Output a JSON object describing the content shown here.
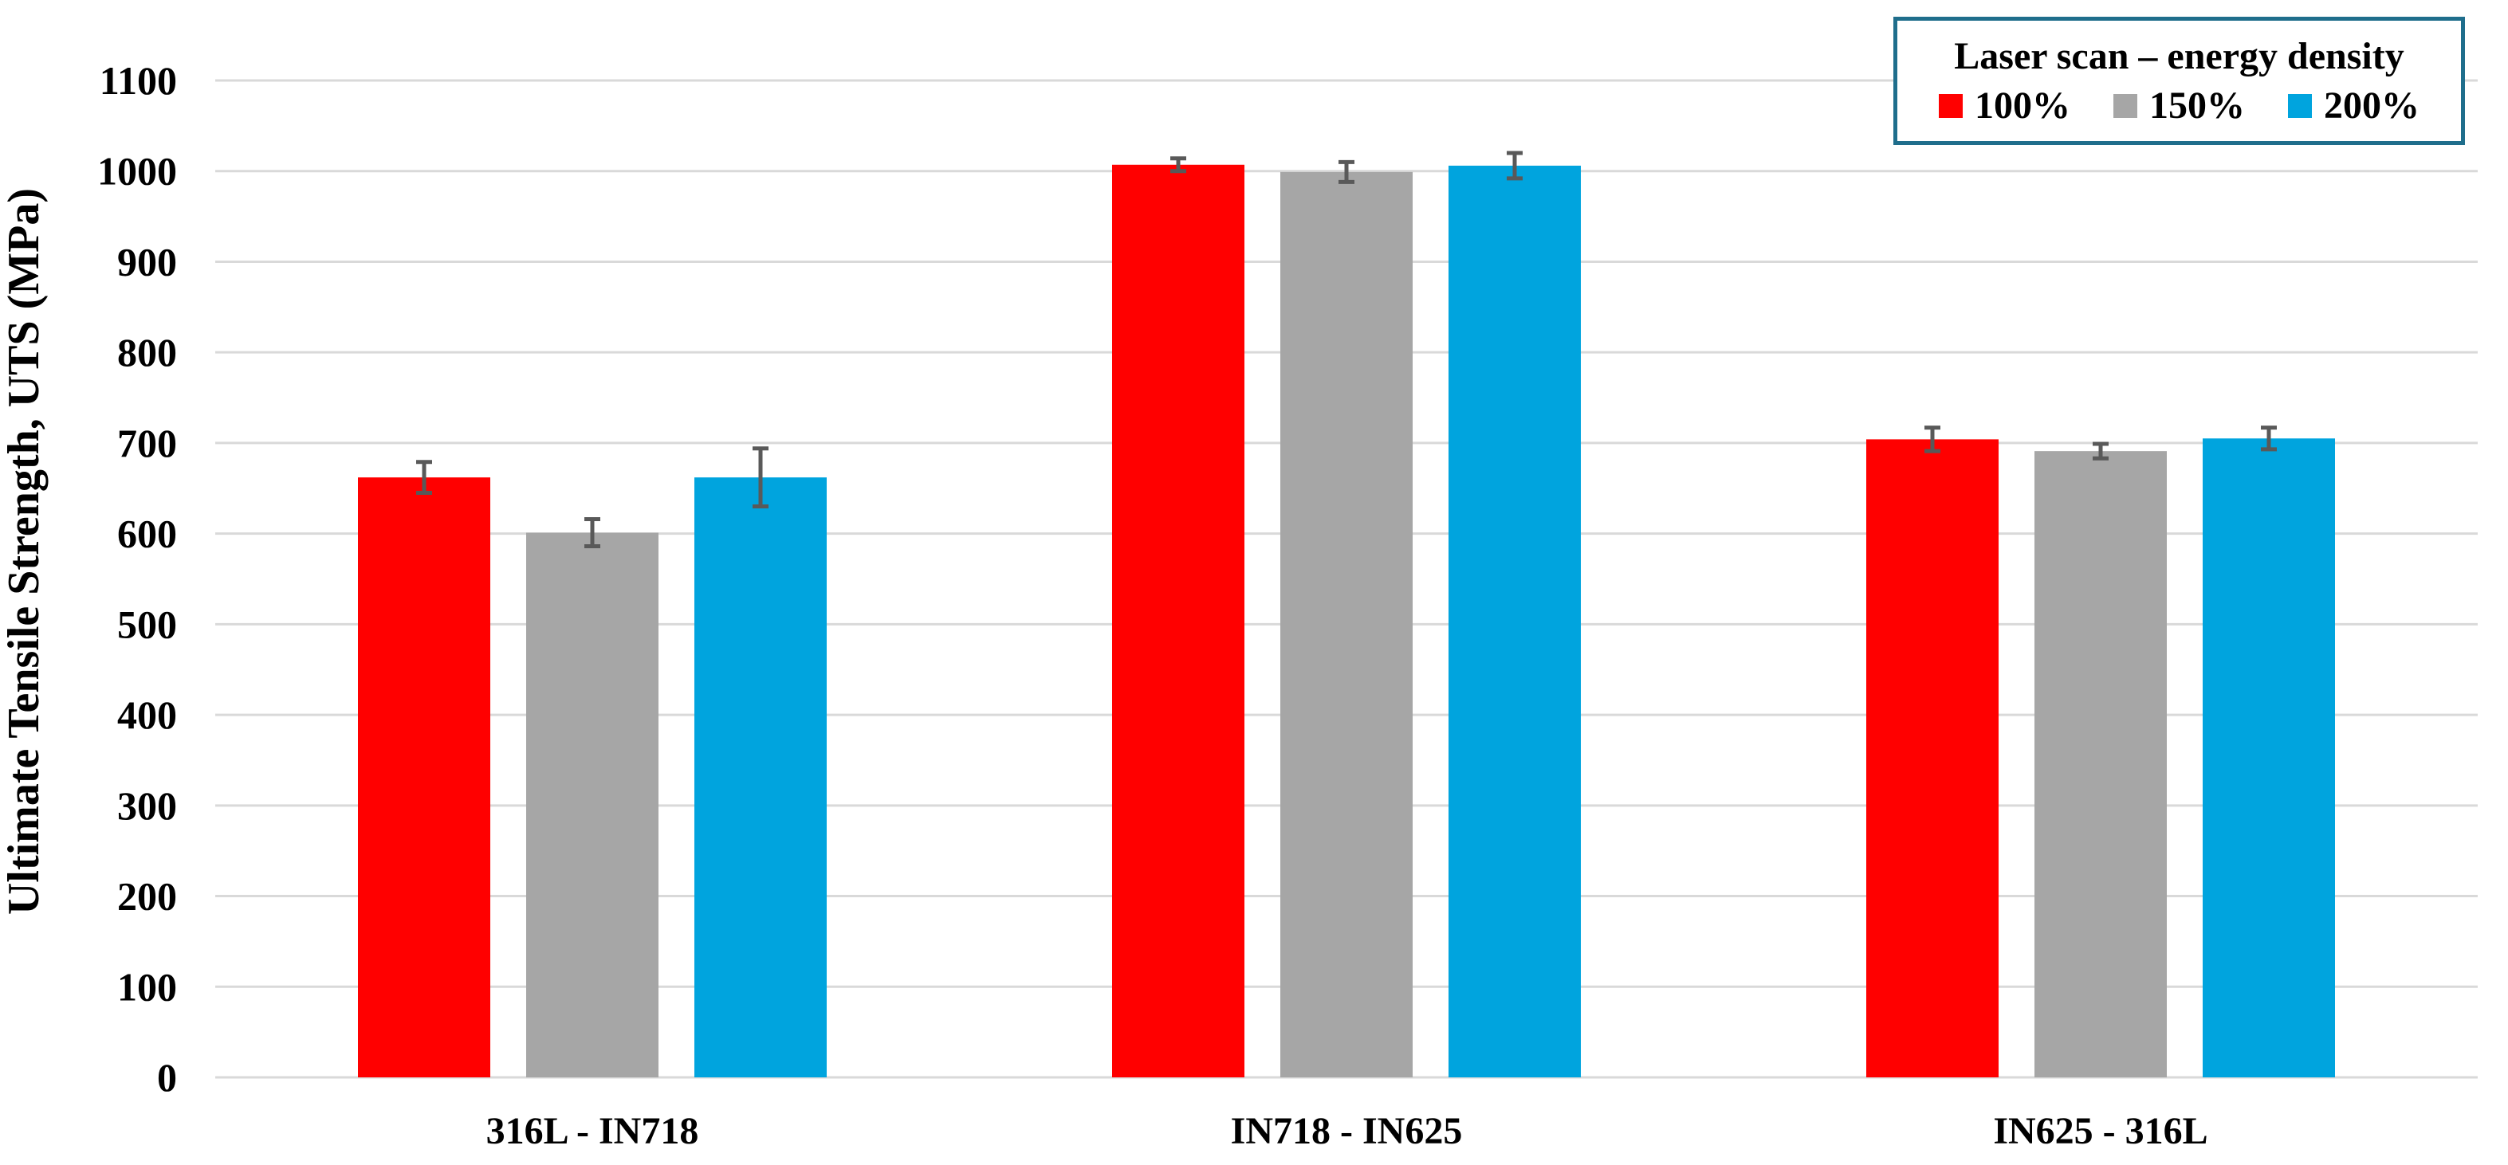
{
  "figure": {
    "background": "#FFFFFF"
  },
  "chart_data": {
    "type": "bar",
    "title": "",
    "xlabel": "",
    "ylabel": "Ultimate Tensile Strength, UTS (MPa)",
    "ylim": [
      0,
      1100
    ],
    "yticks": [
      0,
      100,
      200,
      300,
      400,
      500,
      600,
      700,
      800,
      900,
      1000,
      1100
    ],
    "grid": true,
    "legend_position": "top-right",
    "categories": [
      "316L - IN718",
      "IN718 - IN625",
      "IN625 - 316L"
    ],
    "series": [
      {
        "name": "100%",
        "color": "#FF0000",
        "values": [
          662,
          1007,
          704
        ],
        "errors": [
          17,
          7,
          13
        ]
      },
      {
        "name": "150%",
        "color": "#A6A6A6",
        "values": [
          601,
          999,
          691
        ],
        "errors": [
          15,
          11,
          8
        ]
      },
      {
        "name": "200%",
        "color": "#00A4DE",
        "values": [
          662,
          1006,
          705
        ],
        "errors": [
          32,
          14,
          12
        ]
      }
    ],
    "gridline_color": "#D9D9D9",
    "axis_line_color": "#D9D9D9",
    "error_bar_color": "#595959",
    "text_color": "#000000"
  },
  "legend": {
    "title": "Laser scan – energy density",
    "border_color": "#1F6E8C",
    "background": "#FFFFFF",
    "entries": [
      {
        "label": "100%",
        "color": "#FF0000"
      },
      {
        "label": "150%",
        "color": "#A6A6A6"
      },
      {
        "label": "200%",
        "color": "#00A4DE"
      }
    ]
  }
}
